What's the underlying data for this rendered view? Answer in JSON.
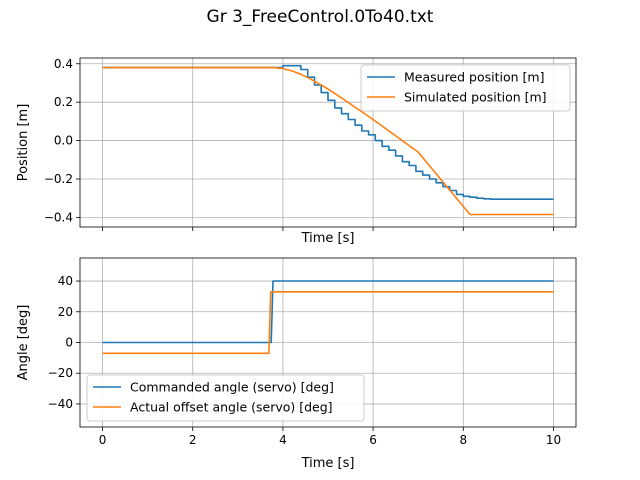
{
  "figure": {
    "title": "Gr 3_FreeControl.0To40.txt"
  },
  "chart_data": [
    {
      "type": "line",
      "xlabel": "Time [s]",
      "ylabel": "Position [m]",
      "xlim": [
        -0.5,
        10.5
      ],
      "ylim": [
        -0.45,
        0.43
      ],
      "xticks": [
        0,
        2,
        4,
        6,
        8,
        10
      ],
      "yticks": [
        -0.4,
        -0.2,
        0.0,
        0.2,
        0.4
      ],
      "yticklabels": [
        "−0.4",
        "−0.2",
        "0.0",
        "0.2",
        "0.4"
      ],
      "xticklabels_visible": false,
      "grid": true,
      "legend_position": "top-right",
      "series": [
        {
          "name": "Measured position [m]",
          "color": "#1f77b4",
          "step": true,
          "x": [
            0,
            4.0,
            4.4,
            4.55,
            4.7,
            4.85,
            5.0,
            5.15,
            5.3,
            5.45,
            5.6,
            5.75,
            5.9,
            6.05,
            6.2,
            6.35,
            6.5,
            6.65,
            6.8,
            6.95,
            7.1,
            7.25,
            7.4,
            7.55,
            7.7,
            7.85,
            8.0,
            8.15,
            8.3,
            8.45,
            8.6,
            10
          ],
          "y": [
            0.38,
            0.39,
            0.37,
            0.33,
            0.29,
            0.25,
            0.21,
            0.17,
            0.14,
            0.11,
            0.08,
            0.05,
            0.03,
            0.0,
            -0.03,
            -0.05,
            -0.08,
            -0.11,
            -0.13,
            -0.16,
            -0.18,
            -0.2,
            -0.22,
            -0.24,
            -0.26,
            -0.28,
            -0.29,
            -0.295,
            -0.3,
            -0.303,
            -0.305,
            -0.305
          ]
        },
        {
          "name": "Simulated position [m]",
          "color": "#ff7f0e",
          "step": false,
          "x": [
            0,
            3.8,
            4.0,
            4.2,
            4.4,
            4.6,
            4.8,
            5.0,
            5.3,
            6.0,
            7.0,
            8.15,
            10
          ],
          "y": [
            0.38,
            0.38,
            0.375,
            0.363,
            0.345,
            0.322,
            0.296,
            0.268,
            0.222,
            0.11,
            -0.06,
            -0.385,
            -0.385
          ]
        }
      ]
    },
    {
      "type": "line",
      "xlabel": "Time [s]",
      "ylabel": "Angle [deg]",
      "xlim": [
        -0.5,
        10.5
      ],
      "ylim": [
        -55,
        55
      ],
      "xticks": [
        0,
        2,
        4,
        6,
        8,
        10
      ],
      "yticks": [
        -40,
        -20,
        0,
        20,
        40
      ],
      "yticklabels": [
        "−40",
        "−20",
        "0",
        "20",
        "40"
      ],
      "xticklabels_visible": true,
      "grid": true,
      "legend_position": "lower-left",
      "series": [
        {
          "name": "Commanded angle (servo) [deg]",
          "color": "#1f77b4",
          "step": false,
          "x": [
            0,
            3.74,
            3.78,
            10
          ],
          "y": [
            0,
            0,
            40,
            40
          ]
        },
        {
          "name": "Actual offset angle (servo) [deg]",
          "color": "#ff7f0e",
          "step": false,
          "x": [
            0,
            3.69,
            3.73,
            10
          ],
          "y": [
            -7,
            -7,
            33,
            33
          ]
        }
      ]
    }
  ]
}
